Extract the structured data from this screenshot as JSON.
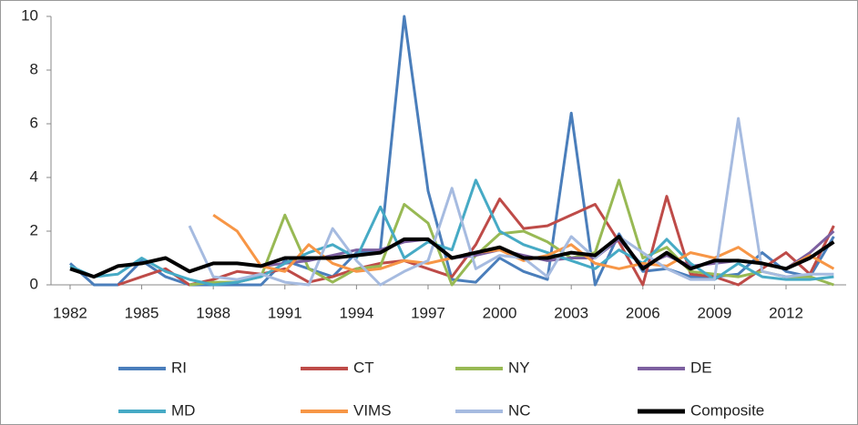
{
  "chart_data": {
    "type": "line",
    "x": [
      1982,
      1983,
      1984,
      1985,
      1986,
      1987,
      1988,
      1989,
      1990,
      1991,
      1992,
      1993,
      1994,
      1995,
      1996,
      1997,
      1998,
      1999,
      2000,
      2001,
      2002,
      2003,
      2004,
      2005,
      2006,
      2007,
      2008,
      2009,
      2010,
      2011,
      2012,
      2013,
      2014
    ],
    "xlim": [
      1981.2,
      2014.5
    ],
    "xticks": [
      1982,
      1985,
      1988,
      1991,
      1994,
      1997,
      2000,
      2003,
      2006,
      2009,
      2012
    ],
    "ylim": [
      0,
      10
    ],
    "yticks": [
      0,
      2,
      4,
      6,
      8,
      10
    ],
    "grid": false,
    "legend": "bottom",
    "series": [
      {
        "name": "RI",
        "color": "#4a7ebb",
        "values": [
          0.8,
          0,
          0,
          0.9,
          0.3,
          0,
          0,
          0,
          0,
          0.9,
          0.6,
          0.3,
          1.2,
          1.3,
          10,
          3.5,
          0.2,
          0.1,
          1.0,
          0.5,
          0.2,
          6.4,
          0,
          1.9,
          0.5,
          0.6,
          0.3,
          0.3,
          0.4,
          1.2,
          0.5,
          0.3,
          1.8
        ]
      },
      {
        "name": "CT",
        "color": "#be4b48",
        "values": [
          null,
          null,
          0,
          0.3,
          0.6,
          0,
          0.2,
          0.5,
          0.4,
          0.6,
          0.1,
          0.3,
          0.6,
          0.8,
          0.9,
          0.6,
          0.3,
          1.5,
          3.2,
          2.1,
          2.2,
          2.6,
          3.0,
          1.6,
          0,
          3.3,
          0.4,
          0.3,
          0,
          0.6,
          1.2,
          0.4,
          2.2
        ]
      },
      {
        "name": "NY",
        "color": "#98b954",
        "values": [
          null,
          null,
          null,
          null,
          null,
          0,
          0.1,
          0.1,
          0.3,
          2.6,
          0.6,
          0.1,
          0.6,
          0.7,
          3.0,
          2.3,
          0,
          1.1,
          1.9,
          2.0,
          1.6,
          1.0,
          1.2,
          3.9,
          1.0,
          1.4,
          0.5,
          0.4,
          0.3,
          0.5,
          0.3,
          0.3,
          0
        ]
      },
      {
        "name": "DE",
        "color": "#7d60a0",
        "values": [
          null,
          null,
          null,
          null,
          null,
          null,
          null,
          null,
          0.7,
          0.8,
          0.9,
          1.1,
          1.3,
          1.3,
          1.6,
          1.7,
          1.0,
          1.1,
          1.3,
          1.1,
          0.9,
          1.0,
          1.0,
          1.7,
          0.7,
          1.1,
          0.7,
          0.8,
          0.9,
          0.8,
          0.6,
          1.2,
          2.0
        ]
      },
      {
        "name": "MD",
        "color": "#46aac5",
        "values": [
          0.7,
          0.3,
          0.4,
          1.0,
          0.5,
          0.2,
          0,
          0.1,
          0.3,
          0.8,
          1.2,
          1.5,
          1.0,
          2.9,
          1.0,
          1.6,
          1.3,
          3.9,
          2.0,
          1.5,
          1.2,
          0.9,
          0.6,
          1.3,
          0.8,
          1.7,
          0.8,
          0.2,
          0.8,
          0.3,
          0.2,
          0.2,
          0.3
        ]
      },
      {
        "name": "VIMS",
        "color": "#f79646",
        "values": [
          null,
          null,
          null,
          null,
          null,
          null,
          2.6,
          2.0,
          0.7,
          0.5,
          1.5,
          0.8,
          0.5,
          0.6,
          0.9,
          0.8,
          1.0,
          1.2,
          1.3,
          0.9,
          1.1,
          1.5,
          0.8,
          0.6,
          0.8,
          0.7,
          1.2,
          1.0,
          1.4,
          0.8,
          0.6,
          1.1,
          0.6
        ]
      },
      {
        "name": "NC",
        "color": "#a6bbe0",
        "values": [
          null,
          null,
          null,
          null,
          null,
          2.2,
          0.3,
          0.2,
          0.4,
          0.1,
          0,
          2.1,
          0.9,
          0,
          0.5,
          0.9,
          3.6,
          0.6,
          1.1,
          1.0,
          0.3,
          1.8,
          1.0,
          1.8,
          1.2,
          0.6,
          0.2,
          0.2,
          6.2,
          0.5,
          0.3,
          0.4,
          0.4
        ]
      },
      {
        "name": "Composite",
        "color": "#000000",
        "values": [
          0.6,
          0.3,
          0.7,
          0.8,
          1.0,
          0.5,
          0.8,
          0.8,
          0.7,
          1.0,
          1.0,
          1.0,
          1.1,
          1.2,
          1.7,
          1.7,
          1.0,
          1.2,
          1.4,
          1.0,
          1.0,
          1.2,
          1.1,
          1.8,
          0.6,
          1.2,
          0.6,
          0.9,
          0.9,
          0.8,
          0.6,
          1.0,
          1.6
        ]
      }
    ]
  }
}
